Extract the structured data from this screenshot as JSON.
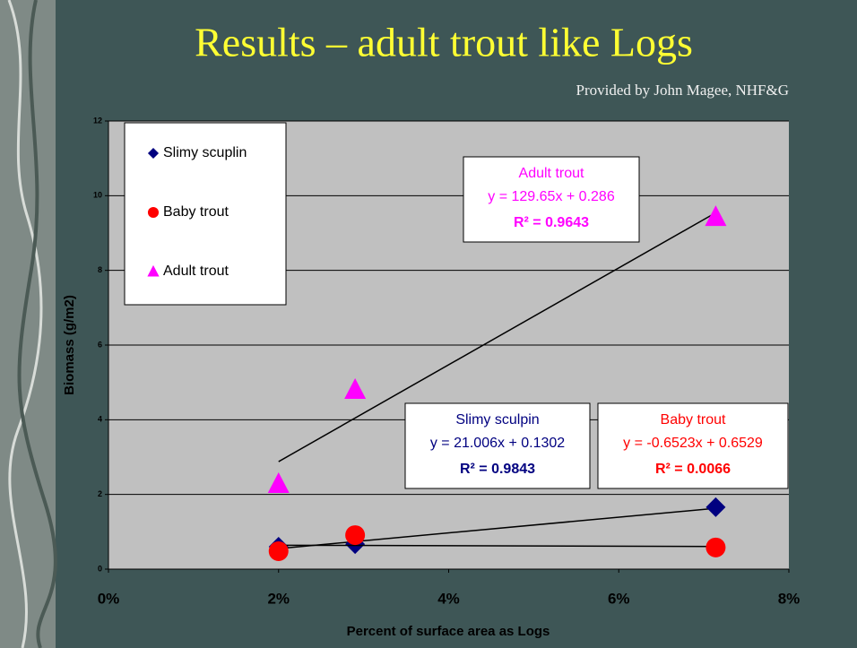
{
  "chart_data": {
    "type": "scatter",
    "title": "Results – adult trout like Logs",
    "subtitle": "Provided by John Magee, NHF&G",
    "x_label": "Percent of surface area as Logs",
    "y_label": "Biomass (g/m2)",
    "xlim": [
      0,
      0.08
    ],
    "xticks": [
      {
        "value": 0,
        "label": "0%"
      },
      {
        "value": 0.02,
        "label": "2%"
      },
      {
        "value": 0.04,
        "label": "4%"
      },
      {
        "value": 0.06,
        "label": "6%"
      },
      {
        "value": 0.08,
        "label": "8%"
      }
    ],
    "ylim": [
      0,
      12
    ],
    "yticks": [
      0,
      2,
      4,
      6,
      8,
      10,
      12
    ],
    "grid": true,
    "legend": "top-left",
    "series": [
      {
        "name": "Slimy scuplin",
        "color": "#000080",
        "marker": "diamond",
        "x": [
          0.02,
          0.029,
          0.0714
        ],
        "values": [
          0.6,
          0.67,
          1.66
        ],
        "trendline": {
          "label": "Slimy sculpin",
          "equation": "y = 21.006x + 0.1302",
          "r_squared": "R² = 0.9843",
          "slope": 21.006,
          "intercept": 0.1302
        }
      },
      {
        "name": "Baby trout",
        "color": "#ff0000",
        "marker": "circle",
        "x": [
          0.02,
          0.029,
          0.0714
        ],
        "values": [
          0.48,
          0.91,
          0.58
        ],
        "trendline": {
          "label": "Baby trout",
          "equation": "y = -0.6523x + 0.6529",
          "r_squared": "R² = 0.0066",
          "slope": -0.6523,
          "intercept": 0.6529
        }
      },
      {
        "name": "Adult trout",
        "color": "#ff00ff",
        "marker": "triangle",
        "x": [
          0.02,
          0.029,
          0.0714
        ],
        "values": [
          2.28,
          4.8,
          9.43
        ],
        "trendline": {
          "label": "Adult trout",
          "equation": "y = 129.65x + 0.286",
          "r_squared": "R² = 0.9643",
          "slope": 129.65,
          "intercept": 0.286
        }
      }
    ]
  }
}
